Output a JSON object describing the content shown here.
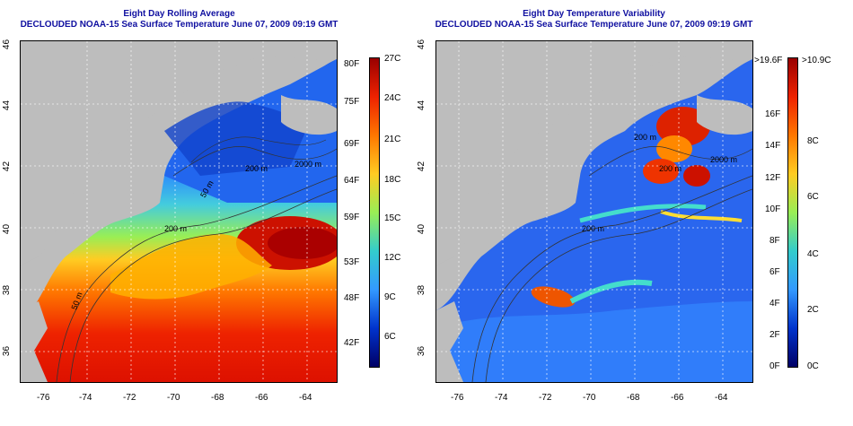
{
  "left_panel": {
    "title": "Eight Day Rolling Average",
    "subtitle": "DECLOUDED NOAA-15 Sea Surface Temperature June 07, 2009 09:19 GMT",
    "lon_ticks": [
      "-76",
      "-74",
      "-72",
      "-70",
      "-68",
      "-66",
      "-64"
    ],
    "lat_ticks": [
      "46",
      "44",
      "42",
      "40",
      "38",
      "36"
    ],
    "contour_labels": [
      "200 m",
      "2000 m",
      "200 m",
      "50 m",
      "50 m"
    ],
    "colorbar_f": [
      "80F",
      "75F",
      "69F",
      "64F",
      "59F",
      "53F",
      "48F",
      "42F"
    ],
    "colorbar_c": [
      "27C",
      "24C",
      "21C",
      "18C",
      "15C",
      "12C",
      "9C",
      "6C"
    ],
    "colors": [
      "#000066",
      "#0033cc",
      "#3399ff",
      "#33cccc",
      "#99ee55",
      "#ffee33",
      "#ff9900",
      "#ee2200",
      "#990000"
    ]
  },
  "right_panel": {
    "title": "Eight Day Temperature Variability",
    "subtitle": "DECLOUDED NOAA-15 Sea Surface Temperature June 07, 2009 09:19 GMT",
    "lon_ticks": [
      "-76",
      "-74",
      "-72",
      "-70",
      "-68",
      "-66",
      "-64"
    ],
    "lat_ticks": [
      "46",
      "44",
      "42",
      "40",
      "38",
      "36"
    ],
    "contour_labels": [
      "200 m",
      "2000 m",
      "200 m",
      "200 m"
    ],
    "colorbar_f": [
      ">19.6F",
      "16F",
      "14F",
      "12F",
      "10F",
      "8F",
      "6F",
      "4F",
      "2F",
      "0F"
    ],
    "colorbar_c": [
      ">10.9C",
      "8C",
      "6C",
      "4C",
      "2C",
      "0C"
    ],
    "colors": [
      "#000066",
      "#0033cc",
      "#3399ff",
      "#33cccc",
      "#99ee55",
      "#ffee33",
      "#ff9900",
      "#ee2200",
      "#990000"
    ]
  }
}
